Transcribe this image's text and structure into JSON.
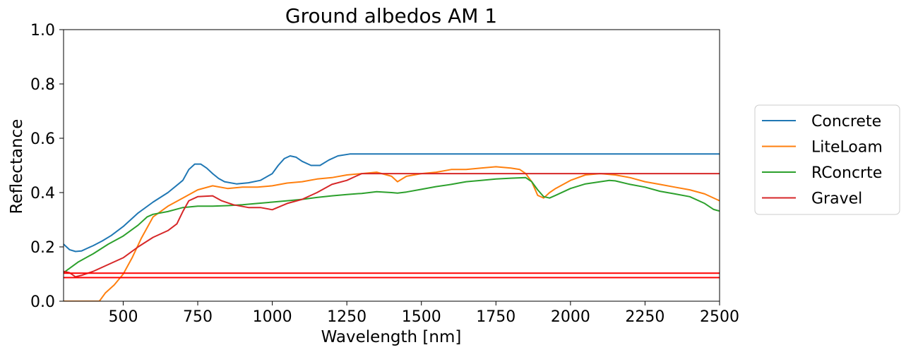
{
  "chart_data": {
    "type": "line",
    "title": "Ground albedos AM 1",
    "xlabel": "Wavelength [nm]",
    "ylabel": "Reflectance",
    "xlim": [
      300,
      2500
    ],
    "ylim": [
      0.0,
      1.0
    ],
    "xticks": [
      500,
      750,
      1000,
      1250,
      1500,
      1750,
      2000,
      2250,
      2500
    ],
    "xtick_labels": [
      "500",
      "750",
      "1000",
      "1250",
      "1500",
      "1750",
      "2000",
      "2250",
      "2500"
    ],
    "yticks": [
      0.0,
      0.2,
      0.4,
      0.6,
      0.8,
      1.0
    ],
    "ytick_labels": [
      "0.0",
      "0.2",
      "0.4",
      "0.6",
      "0.8",
      "1.0"
    ],
    "grid": false,
    "legend_position": "outside-right",
    "series": [
      {
        "name": "Concrete",
        "color": "#1f77b4",
        "x": [
          300,
          320,
          340,
          360,
          380,
          400,
          430,
          460,
          500,
          550,
          600,
          650,
          700,
          720,
          740,
          760,
          780,
          800,
          820,
          840,
          880,
          920,
          960,
          1000,
          1020,
          1040,
          1060,
          1080,
          1100,
          1130,
          1160,
          1190,
          1220,
          1260,
          1300,
          2500
        ],
        "y": [
          0.21,
          0.19,
          0.183,
          0.185,
          0.195,
          0.205,
          0.222,
          0.242,
          0.275,
          0.325,
          0.365,
          0.4,
          0.445,
          0.485,
          0.505,
          0.505,
          0.49,
          0.47,
          0.452,
          0.44,
          0.432,
          0.436,
          0.445,
          0.47,
          0.5,
          0.525,
          0.535,
          0.53,
          0.515,
          0.5,
          0.5,
          0.52,
          0.535,
          0.542,
          0.542,
          0.542
        ]
      },
      {
        "name": "LiteLoam",
        "color": "#ff7f0e",
        "x": [
          300,
          420,
          440,
          470,
          500,
          530,
          560,
          600,
          650,
          700,
          750,
          800,
          850,
          900,
          950,
          1000,
          1050,
          1100,
          1150,
          1200,
          1250,
          1300,
          1350,
          1400,
          1420,
          1450,
          1500,
          1550,
          1600,
          1650,
          1700,
          1750,
          1800,
          1830,
          1850,
          1870,
          1890,
          1910,
          1930,
          1950,
          2000,
          2050,
          2100,
          2150,
          2200,
          2250,
          2300,
          2350,
          2400,
          2450,
          2500
        ],
        "y": [
          0.0,
          0.0,
          0.03,
          0.06,
          0.1,
          0.16,
          0.23,
          0.31,
          0.35,
          0.38,
          0.41,
          0.425,
          0.415,
          0.42,
          0.42,
          0.425,
          0.435,
          0.44,
          0.45,
          0.455,
          0.465,
          0.47,
          0.475,
          0.46,
          0.44,
          0.46,
          0.47,
          0.475,
          0.485,
          0.485,
          0.49,
          0.495,
          0.49,
          0.485,
          0.47,
          0.44,
          0.39,
          0.38,
          0.4,
          0.415,
          0.445,
          0.465,
          0.47,
          0.465,
          0.455,
          0.44,
          0.43,
          0.42,
          0.41,
          0.395,
          0.37
        ]
      },
      {
        "name": "RConcrte",
        "color": "#2ca02c",
        "x": [
          300,
          350,
          400,
          450,
          500,
          550,
          580,
          600,
          650,
          700,
          750,
          800,
          850,
          900,
          950,
          1000,
          1050,
          1100,
          1150,
          1200,
          1250,
          1300,
          1350,
          1400,
          1420,
          1450,
          1500,
          1550,
          1600,
          1650,
          1700,
          1750,
          1800,
          1850,
          1870,
          1890,
          1910,
          1930,
          1950,
          2000,
          2050,
          2100,
          2130,
          2150,
          2200,
          2250,
          2300,
          2350,
          2400,
          2450,
          2480,
          2500
        ],
        "y": [
          0.105,
          0.145,
          0.175,
          0.21,
          0.24,
          0.28,
          0.31,
          0.32,
          0.33,
          0.345,
          0.35,
          0.35,
          0.352,
          0.355,
          0.36,
          0.365,
          0.37,
          0.375,
          0.382,
          0.388,
          0.393,
          0.397,
          0.403,
          0.4,
          0.398,
          0.402,
          0.412,
          0.422,
          0.43,
          0.44,
          0.445,
          0.45,
          0.453,
          0.455,
          0.44,
          0.41,
          0.385,
          0.38,
          0.39,
          0.415,
          0.432,
          0.44,
          0.445,
          0.443,
          0.43,
          0.42,
          0.405,
          0.395,
          0.385,
          0.36,
          0.338,
          0.332
        ]
      },
      {
        "name": "Gravel",
        "color": "#d62728",
        "x": [
          300,
          320,
          340,
          360,
          400,
          450,
          500,
          550,
          600,
          650,
          680,
          700,
          720,
          750,
          800,
          830,
          870,
          920,
          960,
          1000,
          1050,
          1100,
          1150,
          1200,
          1250,
          1280,
          1300,
          2500
        ],
        "y": [
          0.11,
          0.105,
          0.09,
          0.095,
          0.11,
          0.135,
          0.16,
          0.2,
          0.235,
          0.26,
          0.285,
          0.33,
          0.37,
          0.385,
          0.388,
          0.37,
          0.355,
          0.345,
          0.345,
          0.337,
          0.36,
          0.375,
          0.4,
          0.43,
          0.445,
          0.46,
          0.47,
          0.47
        ]
      },
      {
        "name": "",
        "color": "#ff0000",
        "x": [
          300,
          2500
        ],
        "y": [
          0.103,
          0.103
        ]
      },
      {
        "name": "",
        "color": "#ff0000",
        "x": [
          300,
          2500
        ],
        "y": [
          0.087,
          0.087
        ]
      }
    ]
  }
}
